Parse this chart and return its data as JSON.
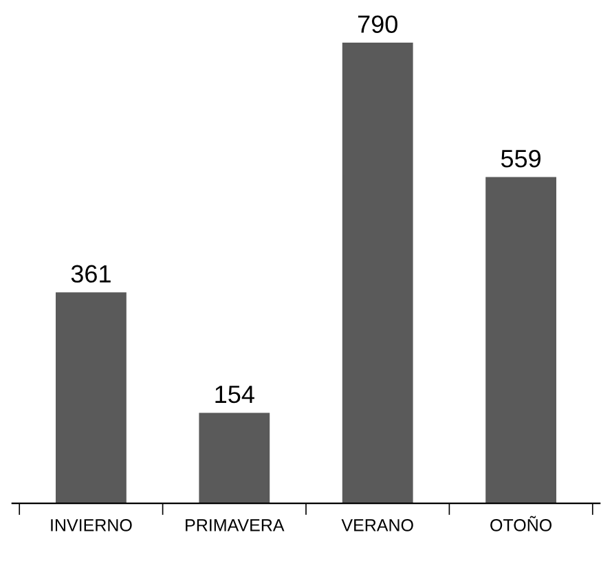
{
  "chart_data": {
    "type": "bar",
    "categories": [
      "INVIERNO",
      "PRIMAVERA",
      "VERANO",
      "OTOÑO"
    ],
    "values": [
      361,
      154,
      790,
      559
    ],
    "color": "#5a5a5a",
    "data_labels": true
  }
}
